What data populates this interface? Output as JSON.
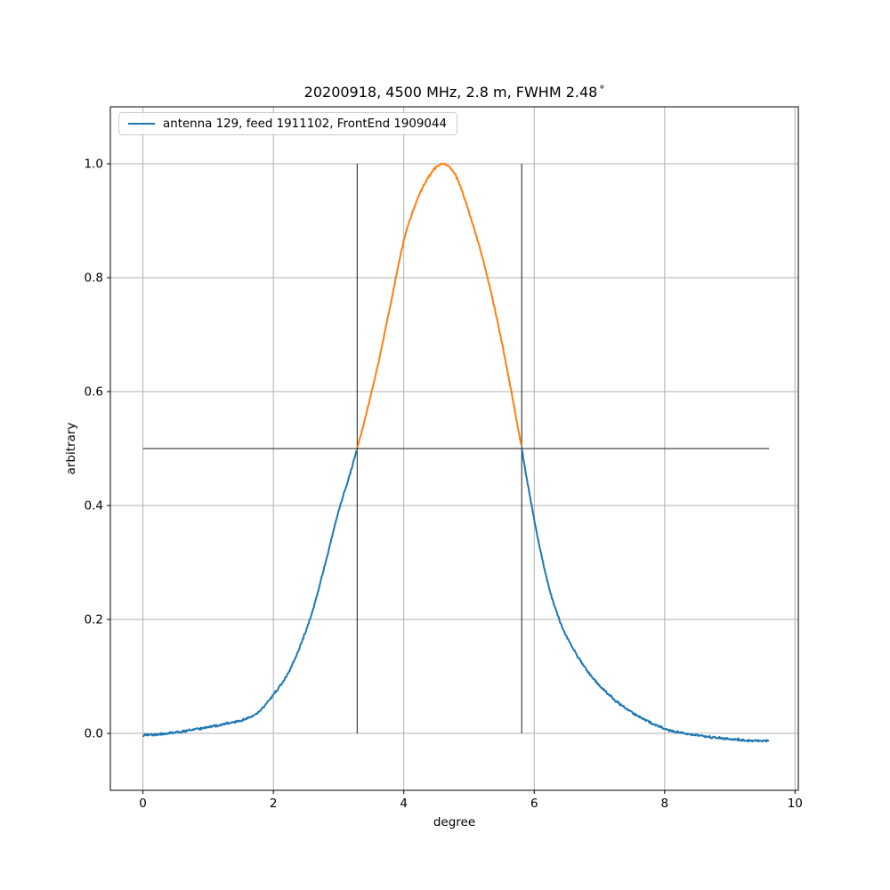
{
  "figure": {
    "title_full": "20200918, 4500 MHz, 2.8 m, FWHM 2.48°",
    "title_text": "20200918, 4500 MHz, 2.8 m, FWHM 2.48",
    "title_degree": "°"
  },
  "chart_data": {
    "type": "line",
    "title": "20200918, 4500 MHz, 2.8 m, FWHM 2.48°",
    "xlabel": "degree",
    "ylabel": "arbitrary",
    "xlim": [
      -0.5,
      10.05
    ],
    "ylim": [
      -0.1,
      1.1
    ],
    "xticks": [
      0,
      2,
      4,
      6,
      8,
      10
    ],
    "xtick_labels": [
      "0",
      "2",
      "4",
      "6",
      "8",
      "10"
    ],
    "yticks": [
      0.0,
      0.2,
      0.4,
      0.6,
      0.8,
      1.0
    ],
    "ytick_labels": [
      "0.0",
      "0.2",
      "0.4",
      "0.6",
      "0.8",
      "1.0"
    ],
    "grid": true,
    "legend": {
      "position": "upper left",
      "entries": [
        {
          "label": "antenna 129, feed 1911102, FrontEnd 1909044",
          "color": "#1f77b4"
        }
      ]
    },
    "series": [
      {
        "name": "antenna 129, feed 1911102, FrontEnd 1909044",
        "x": [
          0.0,
          0.2,
          0.4,
          0.6,
          0.8,
          1.0,
          1.2,
          1.4,
          1.6,
          1.8,
          2.0,
          2.2,
          2.4,
          2.6,
          2.8,
          3.0,
          3.2,
          3.4,
          3.6,
          3.8,
          4.0,
          4.2,
          4.4,
          4.6,
          4.8,
          5.0,
          5.2,
          5.4,
          5.6,
          5.8,
          6.0,
          6.2,
          6.4,
          6.6,
          6.8,
          7.0,
          7.2,
          7.4,
          7.6,
          7.8,
          8.0,
          8.2,
          8.4,
          8.6,
          8.8,
          9.0,
          9.2,
          9.4,
          9.6
        ],
        "y": [
          -0.003,
          -0.002,
          0.0,
          0.003,
          0.007,
          0.011,
          0.015,
          0.02,
          0.026,
          0.04,
          0.068,
          0.1,
          0.15,
          0.215,
          0.3,
          0.39,
          0.465,
          0.55,
          0.645,
          0.755,
          0.865,
          0.935,
          0.98,
          1.0,
          0.978,
          0.915,
          0.838,
          0.742,
          0.63,
          0.505,
          0.375,
          0.268,
          0.195,
          0.148,
          0.112,
          0.084,
          0.062,
          0.044,
          0.03,
          0.018,
          0.008,
          0.002,
          -0.002,
          -0.005,
          -0.008,
          -0.01,
          -0.012,
          -0.013,
          -0.013
        ]
      }
    ],
    "annotations": {
      "half_power_level": 0.5,
      "half_power_line_x": [
        0.0,
        9.6
      ],
      "fwhm_vertical_lines_y": [
        0.0,
        1.0
      ],
      "fwhm_deg": 2.48,
      "peak_deg": 4.55,
      "line_color": "#1a1a1a"
    },
    "colors": {
      "below_half": "#1f77b4",
      "above_half": "#ff7f0e",
      "grid": "#b0b0b0",
      "spine": "#000000",
      "text": "#000000"
    },
    "noise_amplitude": 0.003
  }
}
